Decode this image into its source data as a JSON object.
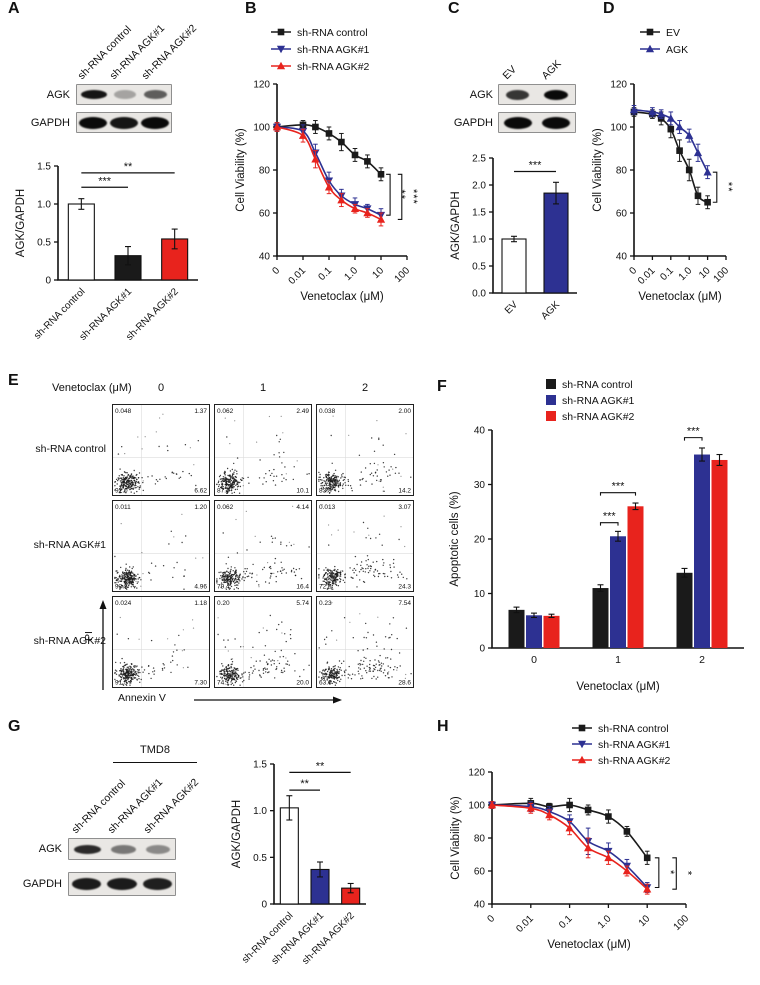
{
  "colors": {
    "black": "#1a1a1a",
    "blue": "#2d3192",
    "red": "#e8231d"
  },
  "panels": {
    "A": {
      "letter": "A",
      "blot": {
        "lanes": [
          "sh-RNA control",
          "sh-RNA AGK#1",
          "sh-RNA AGK#2"
        ],
        "rows": [
          {
            "label": "AGK",
            "bands": [
              0.95,
              0.3,
              0.62
            ]
          },
          {
            "label": "GAPDH",
            "bands": [
              1,
              0.95,
              1
            ]
          }
        ]
      }
    },
    "B": {
      "letter": "B"
    },
    "C": {
      "letter": "C",
      "blot": {
        "lanes": [
          "EV",
          "AGK"
        ],
        "rows": [
          {
            "label": "AGK",
            "bands": [
              0.8,
              1
            ]
          },
          {
            "label": "GAPDH",
            "bands": [
              1,
              1
            ]
          }
        ]
      }
    },
    "D": {
      "letter": "D"
    },
    "E": {
      "letter": "E"
    },
    "F": {
      "letter": "F"
    },
    "G": {
      "letter": "G",
      "cell_line": "TMD8",
      "blot": {
        "lanes": [
          "sh-RNA control",
          "sh-RNA AGK#1",
          "sh-RNA AGK#2"
        ],
        "rows": [
          {
            "label": "AGK",
            "bands": [
              0.85,
              0.5,
              0.42
            ]
          },
          {
            "label": "GAPDH",
            "bands": [
              0.92,
              0.92,
              0.9
            ]
          }
        ]
      }
    },
    "H": {
      "letter": "H"
    }
  },
  "chart_data": [
    {
      "id": "A_bar",
      "type": "bar",
      "ylabel": "AGK/GAPDH",
      "ylim": [
        0,
        1.5
      ],
      "yticks": [
        {
          "v": 0,
          "t": "0"
        },
        {
          "v": 0.5,
          "t": "0.5"
        },
        {
          "v": 1,
          "t": "1.0"
        },
        {
          "v": 1.5,
          "t": "1.5"
        }
      ],
      "categories": [
        "sh-RNA control",
        "sh-RNA AGK#1",
        "sh-RNA AGK#2"
      ],
      "values": [
        1.0,
        0.32,
        0.54
      ],
      "errors": [
        0.07,
        0.12,
        0.13
      ],
      "bar_colors": [
        "#ffffff",
        "#1a1a1a",
        "#e8231d"
      ],
      "sig": [
        {
          "a": 0,
          "b": 1,
          "h": 1.22,
          "label": "***"
        },
        {
          "a": 0,
          "b": 2,
          "h": 1.41,
          "label": "**"
        }
      ]
    },
    {
      "id": "B_line",
      "type": "line",
      "ylabel": "Cell Viability (%)",
      "xlabel": "Venetoclax (μM)",
      "ylim": [
        40,
        120
      ],
      "yticks": [
        40,
        60,
        80,
        100,
        120
      ],
      "xticks": [
        {
          "u": 0,
          "t": "0"
        },
        {
          "u": 1,
          "t": "0.01"
        },
        {
          "u": 2,
          "t": "0.1"
        },
        {
          "u": 3,
          "t": "1.0"
        },
        {
          "u": 4,
          "t": "10"
        },
        {
          "u": 5,
          "t": "100"
        }
      ],
      "x": [
        0,
        0.01,
        0.03,
        0.1,
        0.3,
        1,
        3,
        10
      ],
      "series": [
        {
          "name": "sh-RNA control",
          "color": "#1a1a1a",
          "marker": "square",
          "values": [
            100,
            101,
            100,
            97,
            93,
            87,
            84,
            78
          ],
          "errors": [
            2,
            2,
            3,
            3,
            4,
            3,
            3,
            3
          ]
        },
        {
          "name": "sh-RNA AGK#1",
          "color": "#2d3192",
          "marker": "tri-down",
          "values": [
            100,
            98,
            88,
            75,
            68,
            64,
            62,
            59
          ],
          "errors": [
            2,
            3,
            4,
            4,
            3,
            3,
            2,
            3
          ]
        },
        {
          "name": "sh-RNA AGK#2",
          "color": "#e8231d",
          "marker": "tri-up",
          "values": [
            100,
            96,
            85,
            72,
            66,
            62,
            60,
            57
          ],
          "errors": [
            2,
            3,
            4,
            3,
            3,
            2,
            2,
            3
          ]
        }
      ],
      "sig": [
        {
          "xu": 4.35,
          "y1": 78,
          "y2": 59,
          "label": "**"
        },
        {
          "xu": 4.8,
          "y1": 78,
          "y2": 57,
          "label": "***"
        }
      ]
    },
    {
      "id": "C_bar",
      "type": "bar",
      "ylabel": "AGK/GAPDH",
      "ylim": [
        0,
        2.5
      ],
      "yticks": [
        {
          "v": 0,
          "t": "0.0"
        },
        {
          "v": 0.5,
          "t": "0.5"
        },
        {
          "v": 1,
          "t": "1.0"
        },
        {
          "v": 1.5,
          "t": "1.5"
        },
        {
          "v": 2,
          "t": "2.0"
        },
        {
          "v": 2.5,
          "t": "2.5"
        }
      ],
      "categories": [
        "EV",
        "AGK"
      ],
      "values": [
        1.0,
        1.85
      ],
      "errors": [
        0.05,
        0.2
      ],
      "bar_colors": [
        "#ffffff",
        "#2d3192"
      ],
      "sig": [
        {
          "a": 0,
          "b": 1,
          "h": 2.25,
          "label": "***"
        }
      ]
    },
    {
      "id": "D_line",
      "type": "line",
      "ylabel": "Cell Viability (%)",
      "xlabel": "Venetoclax (μM)",
      "ylim": [
        40,
        120
      ],
      "yticks": [
        40,
        60,
        80,
        100,
        120
      ],
      "xticks": [
        {
          "u": 0,
          "t": "0"
        },
        {
          "u": 1,
          "t": "0.01"
        },
        {
          "u": 2,
          "t": "0.1"
        },
        {
          "u": 3,
          "t": "1.0"
        },
        {
          "u": 4,
          "t": "10"
        },
        {
          "u": 5,
          "t": "100"
        }
      ],
      "x": [
        0,
        0.01,
        0.03,
        0.1,
        0.3,
        1,
        3,
        10
      ],
      "series": [
        {
          "name": "EV",
          "color": "#1a1a1a",
          "marker": "square",
          "values": [
            107,
            106,
            104,
            99,
            89,
            80,
            68,
            65
          ],
          "errors": [
            2,
            2,
            3,
            4,
            5,
            5,
            4,
            3
          ]
        },
        {
          "name": "AGK",
          "color": "#2d3192",
          "marker": "tri-up",
          "values": [
            108,
            107,
            106,
            104,
            100,
            96,
            88,
            79
          ],
          "errors": [
            2,
            2,
            2,
            3,
            3,
            3,
            4,
            3
          ]
        }
      ],
      "sig": [
        {
          "xu": 4.5,
          "y1": 79,
          "y2": 65,
          "label": "**"
        }
      ]
    },
    {
      "id": "E_flow",
      "type": "scatter",
      "col_title": "Venetoclax (μM)",
      "doses": [
        "0",
        "1",
        "2"
      ],
      "rows": [
        "sh-RNA control",
        "sh-RNA AGK#1",
        "sh-RNA AGK#2"
      ],
      "xlabel": "Annexin V",
      "ylabel": "PI",
      "plots": [
        [
          {
            "tl": "0.048",
            "tr": "1.37",
            "bl": "92.0",
            "br": "6.62"
          },
          {
            "tl": "0.062",
            "tr": "2.49",
            "bl": "87.3",
            "br": "10.1"
          },
          {
            "tl": "0.038",
            "tr": "2.00",
            "bl": "83.8",
            "br": "14.2"
          }
        ],
        [
          {
            "tl": "0.011",
            "tr": "1.20",
            "bl": "93.8",
            "br": "4.96"
          },
          {
            "tl": "0.062",
            "tr": "4.14",
            "bl": "79.4",
            "br": "16.4"
          },
          {
            "tl": "0.013",
            "tr": "3.07",
            "bl": "72.6",
            "br": "24.3"
          }
        ],
        [
          {
            "tl": "0.024",
            "tr": "1.18",
            "bl": "91.5",
            "br": "7.30"
          },
          {
            "tl": "0.20",
            "tr": "5.74",
            "bl": "74.1",
            "br": "20.0"
          },
          {
            "tl": "0.23",
            "tr": "7.54",
            "bl": "63.6",
            "br": "28.6"
          }
        ]
      ]
    },
    {
      "id": "F_bar",
      "type": "bar",
      "grouped": true,
      "ylabel": "Apoptotic cells (%)",
      "xlabel": "Venetoclax (μM)",
      "ylim": [
        0,
        40
      ],
      "yticks": [
        {
          "v": 0,
          "t": "0"
        },
        {
          "v": 10,
          "t": "10"
        },
        {
          "v": 20,
          "t": "20"
        },
        {
          "v": 30,
          "t": "30"
        },
        {
          "v": 40,
          "t": "40"
        }
      ],
      "categories": [
        "0",
        "1",
        "2"
      ],
      "series": [
        {
          "name": "sh-RNA control",
          "color": "#1a1a1a",
          "values": [
            7.0,
            11.0,
            13.8
          ],
          "errors": [
            0.5,
            0.6,
            0.8
          ]
        },
        {
          "name": "sh-RNA AGK#1",
          "color": "#2d3192",
          "values": [
            6.0,
            20.5,
            35.5
          ],
          "errors": [
            0.4,
            0.9,
            1.2
          ]
        },
        {
          "name": "sh-RNA AGK#2",
          "color": "#e8231d",
          "values": [
            5.9,
            26.0,
            34.5
          ],
          "errors": [
            0.3,
            0.6,
            1.0
          ]
        }
      ],
      "sig": [
        {
          "g": 1,
          "a": 0,
          "b": 1,
          "h": 23,
          "label": "***"
        },
        {
          "g": 1,
          "a": 0,
          "b": 2,
          "h": 28.5,
          "label": "***"
        },
        {
          "g": 2,
          "a": 0,
          "b": 1,
          "h": 38.6,
          "label": "***"
        }
      ]
    },
    {
      "id": "G_bar",
      "type": "bar",
      "ylabel": "AGK/GAPDH",
      "ylim": [
        0,
        1.5
      ],
      "yticks": [
        {
          "v": 0,
          "t": "0"
        },
        {
          "v": 0.5,
          "t": "0.5"
        },
        {
          "v": 1,
          "t": "1.0"
        },
        {
          "v": 1.5,
          "t": "1.5"
        }
      ],
      "categories": [
        "sh-RNA control",
        "sh-RNA AGK#1",
        "sh-RNA AGK#2"
      ],
      "values": [
        1.03,
        0.37,
        0.17
      ],
      "errors": [
        0.13,
        0.08,
        0.05
      ],
      "bar_colors": [
        "#ffffff",
        "#2d3192",
        "#e8231d"
      ],
      "sig": [
        {
          "a": 0,
          "b": 1,
          "h": 1.22,
          "label": "**"
        },
        {
          "a": 0,
          "b": 2,
          "h": 1.41,
          "label": "**"
        }
      ]
    },
    {
      "id": "H_line",
      "type": "line",
      "ylabel": "Cell Viability (%)",
      "xlabel": "Venetoclax (μM)",
      "ylim": [
        40,
        120
      ],
      "yticks": [
        40,
        60,
        80,
        100,
        120
      ],
      "xticks": [
        {
          "u": 0,
          "t": "0"
        },
        {
          "u": 1,
          "t": "0.01"
        },
        {
          "u": 2,
          "t": "0.1"
        },
        {
          "u": 3,
          "t": "1.0"
        },
        {
          "u": 4,
          "t": "10"
        },
        {
          "u": 5,
          "t": "100"
        }
      ],
      "x": [
        0,
        0.01,
        0.03,
        0.1,
        0.3,
        1,
        3,
        10
      ],
      "series": [
        {
          "name": "sh-RNA control",
          "color": "#1a1a1a",
          "marker": "square",
          "values": [
            100,
            101,
            99,
            100,
            97,
            93,
            84,
            68
          ],
          "errors": [
            2,
            3,
            2,
            4,
            3,
            4,
            3,
            4
          ]
        },
        {
          "name": "sh-RNA AGK#1",
          "color": "#2d3192",
          "marker": "tri-down",
          "values": [
            100,
            99,
            96,
            90,
            78,
            72,
            63,
            50
          ],
          "errors": [
            2,
            3,
            3,
            4,
            8,
            5,
            4,
            3
          ]
        },
        {
          "name": "sh-RNA AGK#2",
          "color": "#e8231d",
          "marker": "tri-up",
          "values": [
            100,
            98,
            94,
            86,
            74,
            68,
            60,
            49
          ],
          "errors": [
            2,
            3,
            3,
            4,
            6,
            4,
            3,
            3
          ]
        }
      ],
      "sig": [
        {
          "xu": 4.3,
          "y1": 68,
          "y2": 50,
          "label": "*"
        },
        {
          "xu": 4.75,
          "y1": 68,
          "y2": 49,
          "label": "*"
        }
      ]
    }
  ]
}
